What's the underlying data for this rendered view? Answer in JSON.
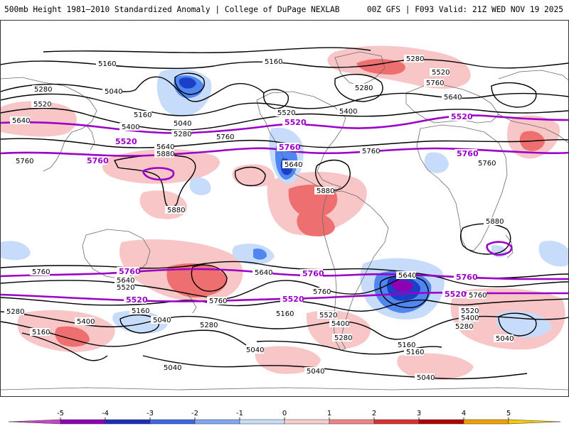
{
  "header": {
    "title_left": "500mb Height 1981–2010 Standardized Anomaly | College of DuPage NEXLAB",
    "title_right": "00Z GFS | F093 Valid: 21Z WED NOV 19 2025"
  },
  "colors": {
    "contour": "#000000",
    "highlight_contour": "#9a00c8",
    "coast": "#6a6a6a",
    "anomaly_neg3": "#1c3fc8",
    "anomaly_neg2": "#4f86f0",
    "anomaly_neg1": "#c6dcfa",
    "anomaly_pos1": "#f8c6c6",
    "anomaly_pos2": "#ee6f6f"
  },
  "map": {
    "contour_labels": [
      "5160",
      "5280",
      "5040",
      "5520",
      "5640",
      "5400",
      "5760",
      "5880"
    ],
    "highlight_labels": [
      "5520",
      "5760"
    ]
  },
  "colorbar": {
    "ticks": [
      "-5",
      "-4",
      "-3",
      "-2",
      "-1",
      "0",
      "1",
      "2",
      "3",
      "4",
      "5"
    ],
    "colors": [
      "#c844c8",
      "#8e00b4",
      "#1c2fb8",
      "#3d66e0",
      "#7fa6f2",
      "#c8dcf8",
      "#f8cccc",
      "#f08484",
      "#d83030",
      "#b00000",
      "#f0a000",
      "#f8c800"
    ]
  }
}
